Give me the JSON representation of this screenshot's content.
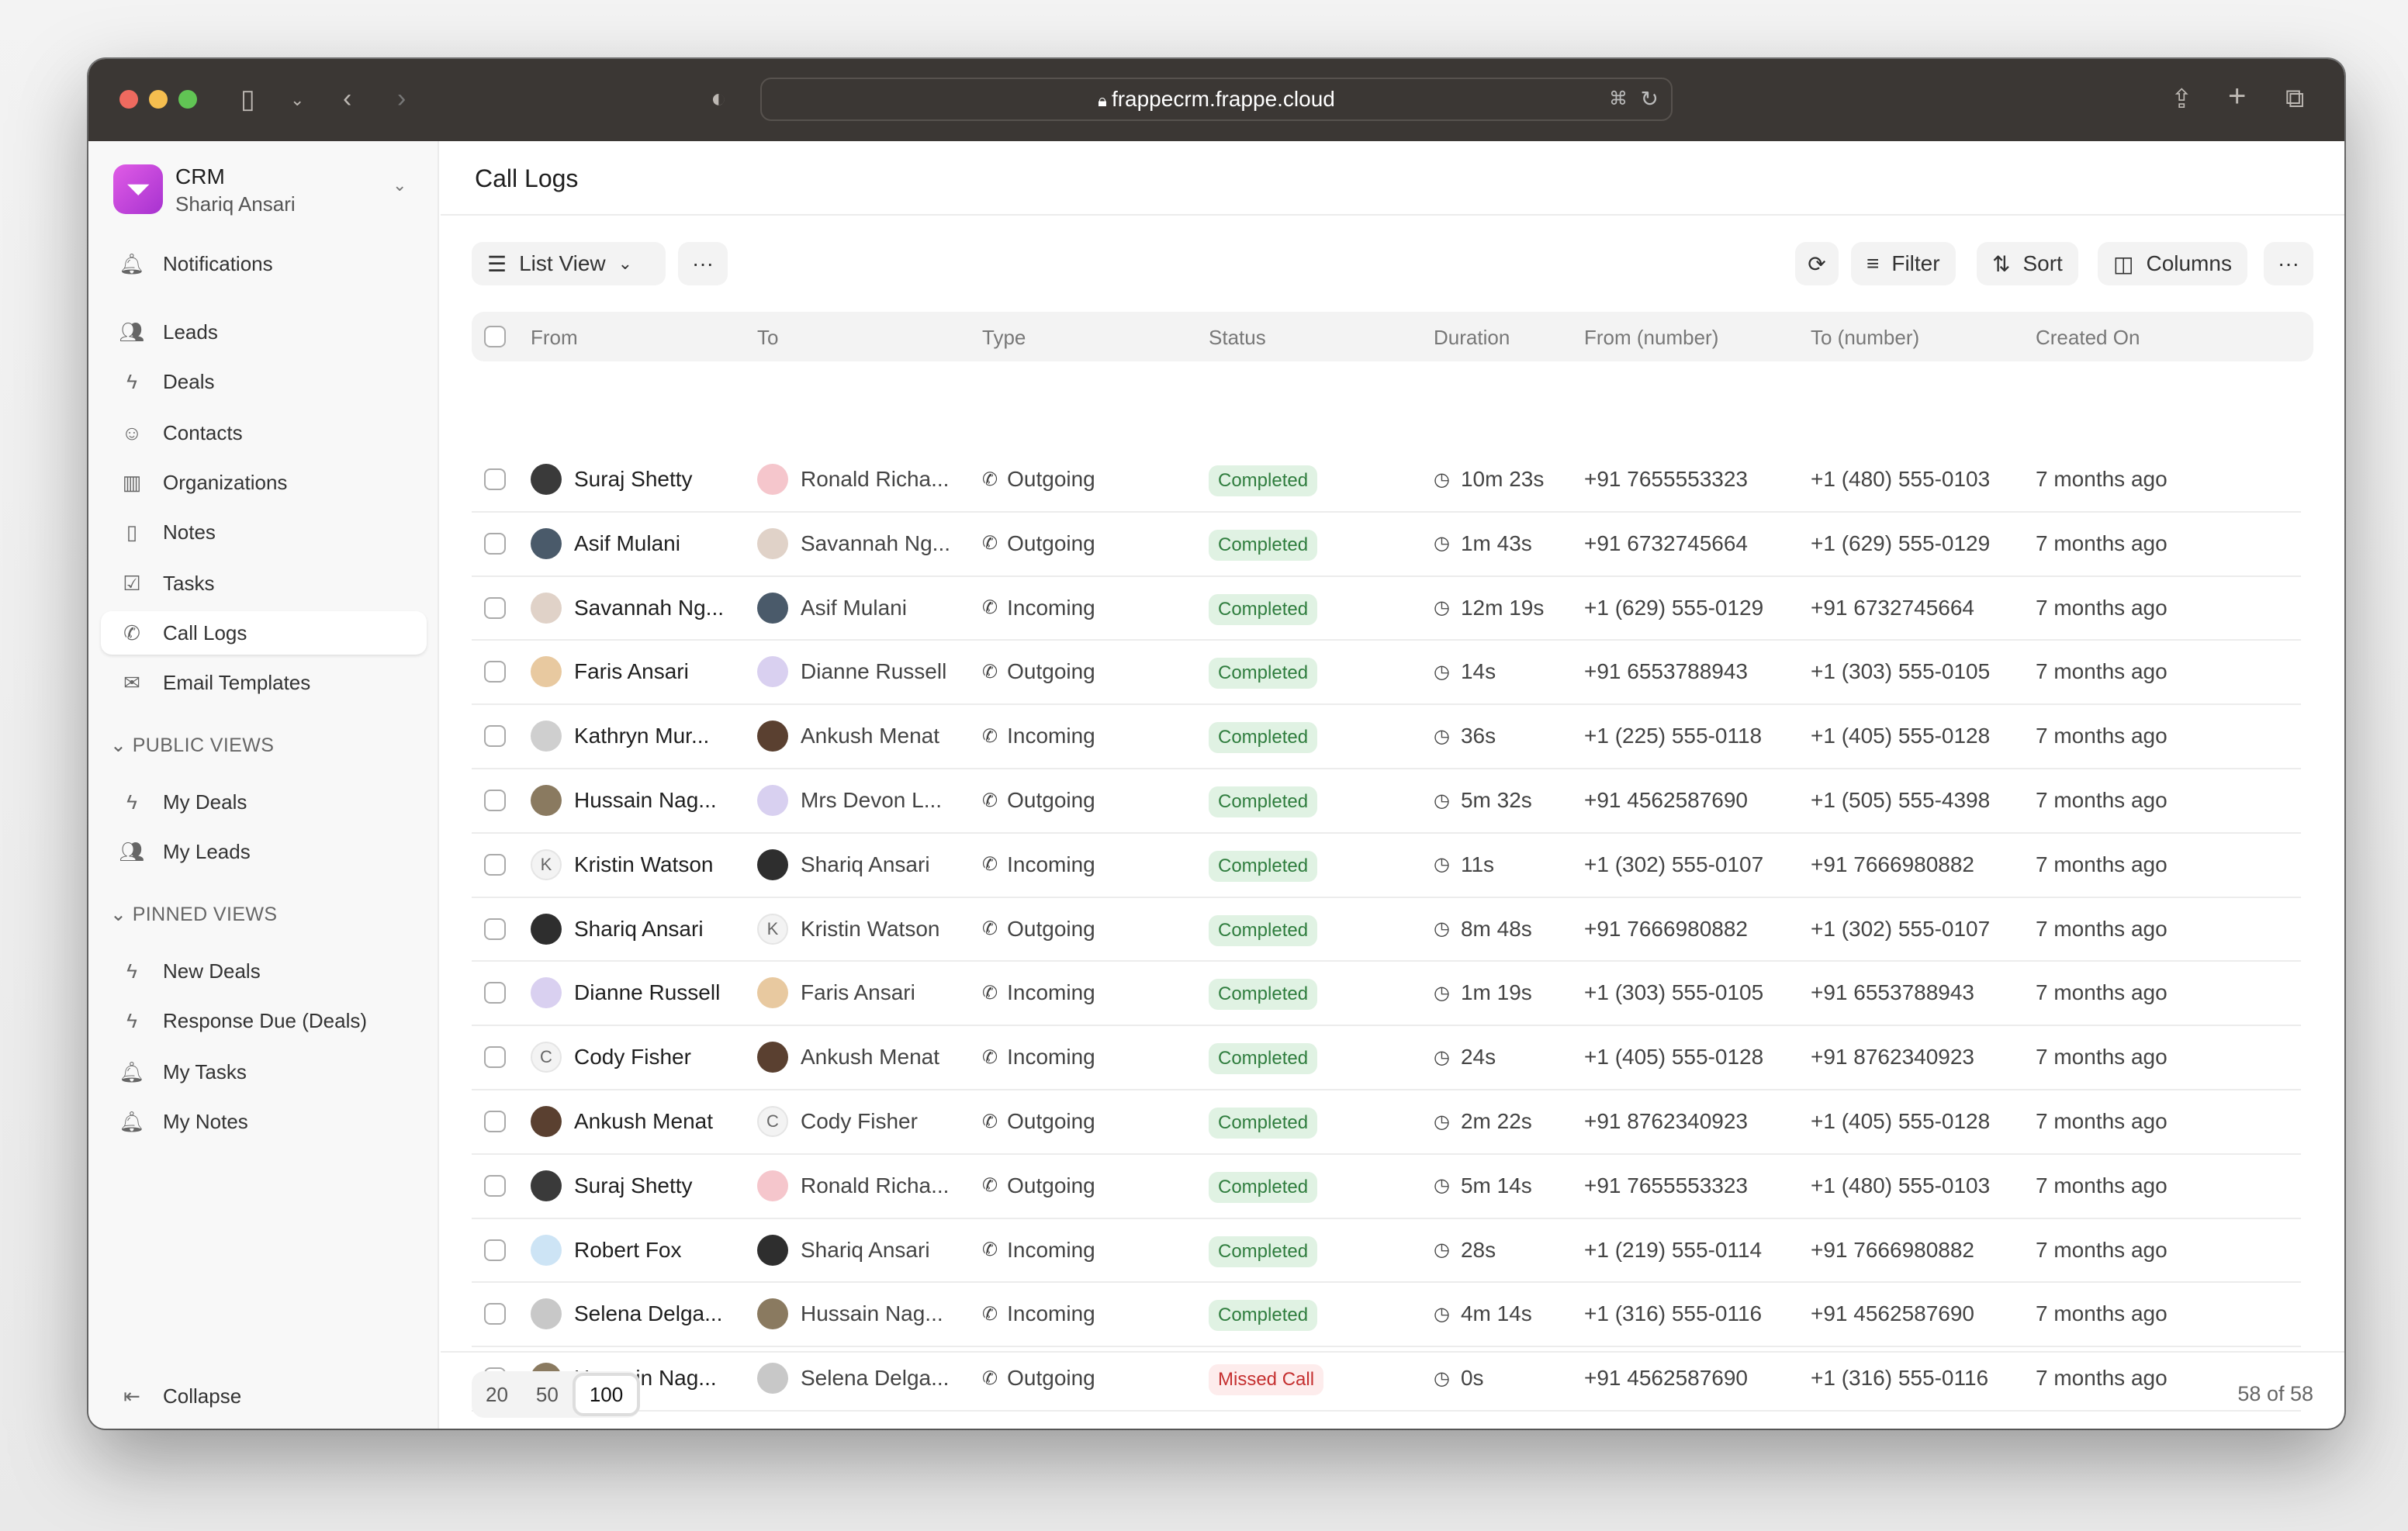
{
  "browser": {
    "url": "frappecrm.frappe.cloud"
  },
  "sidebar": {
    "app_name": "CRM",
    "user_name": "Shariq Ansari",
    "logo_letter": "Y",
    "items": [
      {
        "label": "Notifications",
        "icon": "bell-icon"
      },
      {
        "label": "Leads",
        "icon": "users-icon"
      },
      {
        "label": "Deals",
        "icon": "lightning-icon"
      },
      {
        "label": "Contacts",
        "icon": "contact-icon"
      },
      {
        "label": "Organizations",
        "icon": "building-icon"
      },
      {
        "label": "Notes",
        "icon": "file-icon"
      },
      {
        "label": "Tasks",
        "icon": "checkbox-icon"
      },
      {
        "label": "Call Logs",
        "icon": "phone-icon",
        "active": true
      },
      {
        "label": "Email Templates",
        "icon": "mail-icon"
      }
    ],
    "public_views_label": "PUBLIC VIEWS",
    "public_views": [
      {
        "label": "My Deals",
        "icon": "lightning-icon"
      },
      {
        "label": "My Leads",
        "icon": "users-icon"
      }
    ],
    "pinned_views_label": "PINNED VIEWS",
    "pinned_views": [
      {
        "label": "New Deals",
        "icon": "lightning-icon"
      },
      {
        "label": "Response Due (Deals)",
        "icon": "lightning-icon"
      },
      {
        "label": "My Tasks",
        "icon": "bell-icon"
      },
      {
        "label": "My Notes",
        "icon": "bell-icon"
      }
    ],
    "collapse_label": "Collapse"
  },
  "page": {
    "title": "Call Logs"
  },
  "toolbar": {
    "view_label": "List View",
    "filter_label": "Filter",
    "sort_label": "Sort",
    "columns_label": "Columns"
  },
  "table": {
    "columns": [
      "From",
      "To",
      "Type",
      "Status",
      "Duration",
      "From (number)",
      "To (number)",
      "Created On"
    ],
    "rows": [
      {
        "from": "Suraj Shetty",
        "from_av": "",
        "from_color": "#3a3a3a",
        "to": "Ronald Richa...",
        "to_av": "",
        "to_color": "#f5c6cc",
        "type": "Outgoing",
        "status": "Completed",
        "duration": "10m 23s",
        "from_num": "+91 7655553323",
        "to_num": "+1 (480) 555-0103",
        "created": "7 months ago"
      },
      {
        "from": "Asif Mulani",
        "from_av": "",
        "from_color": "#4a5a6a",
        "to": "Savannah Ng...",
        "to_av": "",
        "to_color": "#e0d2c8",
        "type": "Outgoing",
        "status": "Completed",
        "duration": "1m 43s",
        "from_num": "+91 6732745664",
        "to_num": "+1 (629) 555-0129",
        "created": "7 months ago"
      },
      {
        "from": "Savannah Ng...",
        "from_av": "",
        "from_color": "#e0d2c8",
        "to": "Asif Mulani",
        "to_av": "",
        "to_color": "#4a5a6a",
        "type": "Incoming",
        "status": "Completed",
        "duration": "12m 19s",
        "from_num": "+1 (629) 555-0129",
        "to_num": "+91 6732745664",
        "created": "7 months ago"
      },
      {
        "from": "Faris Ansari",
        "from_av": "",
        "from_color": "#e8c9a0",
        "to": "Dianne Russell",
        "to_av": "",
        "to_color": "#d9d0f0",
        "type": "Outgoing",
        "status": "Completed",
        "duration": "14s",
        "from_num": "+91 6553788943",
        "to_num": "+1 (303) 555-0105",
        "created": "7 months ago"
      },
      {
        "from": "Kathryn Mur...",
        "from_av": "",
        "from_color": "#cfcfcf",
        "to": "Ankush Menat",
        "to_av": "",
        "to_color": "#5a4030",
        "type": "Incoming",
        "status": "Completed",
        "duration": "36s",
        "from_num": "+1 (225) 555-0118",
        "to_num": "+1 (405) 555-0128",
        "created": "7 months ago"
      },
      {
        "from": "Hussain Nag...",
        "from_av": "",
        "from_color": "#8a7a60",
        "to": "Mrs Devon L...",
        "to_av": "",
        "to_color": "#d8d0f0",
        "type": "Outgoing",
        "status": "Completed",
        "duration": "5m 32s",
        "from_num": "+91 4562587690",
        "to_num": "+1 (505) 555-4398",
        "created": "7 months ago"
      },
      {
        "from": "Kristin Watson",
        "from_av": "K",
        "from_color": "#f3f3f3",
        "to": "Shariq Ansari",
        "to_av": "",
        "to_color": "#2e2e2e",
        "type": "Incoming",
        "status": "Completed",
        "duration": "11s",
        "from_num": "+1 (302) 555-0107",
        "to_num": "+91 7666980882",
        "created": "7 months ago"
      },
      {
        "from": "Shariq Ansari",
        "from_av": "",
        "from_color": "#2e2e2e",
        "to": "Kristin Watson",
        "to_av": "K",
        "to_color": "#f3f3f3",
        "type": "Outgoing",
        "status": "Completed",
        "duration": "8m 48s",
        "from_num": "+91 7666980882",
        "to_num": "+1 (302) 555-0107",
        "created": "7 months ago"
      },
      {
        "from": "Dianne Russell",
        "from_av": "",
        "from_color": "#d9d0f0",
        "to": "Faris Ansari",
        "to_av": "",
        "to_color": "#e8c9a0",
        "type": "Incoming",
        "status": "Completed",
        "duration": "1m 19s",
        "from_num": "+1 (303) 555-0105",
        "to_num": "+91 6553788943",
        "created": "7 months ago"
      },
      {
        "from": "Cody Fisher",
        "from_av": "C",
        "from_color": "#f3f3f3",
        "to": "Ankush Menat",
        "to_av": "",
        "to_color": "#5a4030",
        "type": "Incoming",
        "status": "Completed",
        "duration": "24s",
        "from_num": "+1 (405) 555-0128",
        "to_num": "+91 8762340923",
        "created": "7 months ago"
      },
      {
        "from": "Ankush Menat",
        "from_av": "",
        "from_color": "#5a4030",
        "to": "Cody Fisher",
        "to_av": "C",
        "to_color": "#f3f3f3",
        "type": "Outgoing",
        "status": "Completed",
        "duration": "2m 22s",
        "from_num": "+91 8762340923",
        "to_num": "+1 (405) 555-0128",
        "created": "7 months ago"
      },
      {
        "from": "Suraj Shetty",
        "from_av": "",
        "from_color": "#3a3a3a",
        "to": "Ronald Richa...",
        "to_av": "",
        "to_color": "#f5c6cc",
        "type": "Outgoing",
        "status": "Completed",
        "duration": "5m 14s",
        "from_num": "+91 7655553323",
        "to_num": "+1 (480) 555-0103",
        "created": "7 months ago"
      },
      {
        "from": "Robert Fox",
        "from_av": "",
        "from_color": "#cde4f5",
        "to": "Shariq Ansari",
        "to_av": "",
        "to_color": "#2e2e2e",
        "type": "Incoming",
        "status": "Completed",
        "duration": "28s",
        "from_num": "+1 (219) 555-0114",
        "to_num": "+91 7666980882",
        "created": "7 months ago"
      },
      {
        "from": "Selena Delga...",
        "from_av": "",
        "from_color": "#c8c8c8",
        "to": "Hussain Nag...",
        "to_av": "",
        "to_color": "#8a7a60",
        "type": "Incoming",
        "status": "Completed",
        "duration": "4m 14s",
        "from_num": "+1 (316) 555-0116",
        "to_num": "+91 4562587690",
        "created": "7 months ago"
      },
      {
        "from": "Hussain Nag...",
        "from_av": "",
        "from_color": "#8a7a60",
        "to": "Selena Delga...",
        "to_av": "",
        "to_color": "#c8c8c8",
        "type": "Outgoing",
        "status": "Missed Call",
        "duration": "0s",
        "from_num": "+91 4562587690",
        "to_num": "+1 (316) 555-0116",
        "created": "7 months ago"
      }
    ]
  },
  "status_colors": {
    "Completed": {
      "bg": "#e0f2e3",
      "fg": "#2f7d3e"
    },
    "Missed Call": {
      "bg": "#fdecec",
      "fg": "#c53030"
    }
  },
  "footer": {
    "page_sizes": [
      "20",
      "50",
      "100"
    ],
    "selected_page_size": "100",
    "count": "58 of 58"
  }
}
